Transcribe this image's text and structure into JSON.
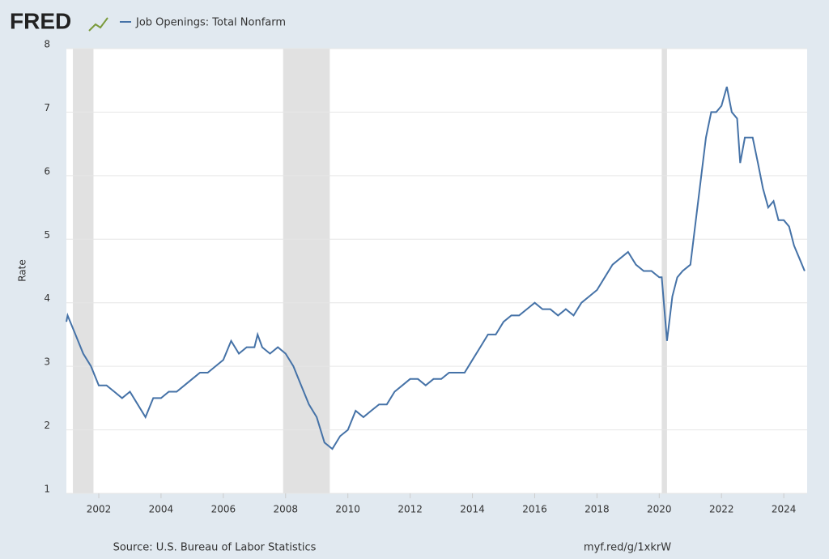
{
  "logo": "FRED",
  "chart_data": {
    "type": "line",
    "y_label": "Rate",
    "source": "Source: U.S. Bureau of Labor Statistics",
    "link": "myf.red/g/1xkrW",
    "xlim": [
      2000.96,
      2024.75
    ],
    "xticks": [
      2002,
      2004,
      2006,
      2008,
      2010,
      2012,
      2014,
      2016,
      2018,
      2020,
      2022,
      2024
    ],
    "ylim": [
      1,
      8
    ],
    "yticks": [
      1,
      2,
      3,
      4,
      5,
      6,
      7,
      8
    ],
    "grid": true,
    "recessions": [
      [
        2001.17,
        2001.83
      ],
      [
        2007.92,
        2009.42
      ],
      [
        2020.08,
        2020.25
      ]
    ],
    "x": [
      2000.96,
      2001.0,
      2001.25,
      2001.5,
      2001.75,
      2002.0,
      2002.25,
      2002.5,
      2002.75,
      2003.0,
      2003.25,
      2003.5,
      2003.75,
      2004.0,
      2004.25,
      2004.5,
      2004.75,
      2005.0,
      2005.25,
      2005.5,
      2005.75,
      2006.0,
      2006.25,
      2006.5,
      2006.75,
      2007.0,
      2007.1,
      2007.25,
      2007.5,
      2007.75,
      2008.0,
      2008.25,
      2008.5,
      2008.75,
      2009.0,
      2009.25,
      2009.5,
      2009.75,
      2010.0,
      2010.25,
      2010.5,
      2010.75,
      2011.0,
      2011.25,
      2011.5,
      2011.75,
      2012.0,
      2012.25,
      2012.5,
      2012.75,
      2013.0,
      2013.25,
      2013.5,
      2013.75,
      2014.0,
      2014.25,
      2014.5,
      2014.75,
      2015.0,
      2015.25,
      2015.5,
      2015.75,
      2016.0,
      2016.25,
      2016.5,
      2016.75,
      2017.0,
      2017.25,
      2017.5,
      2017.75,
      2018.0,
      2018.25,
      2018.5,
      2018.75,
      2019.0,
      2019.25,
      2019.5,
      2019.75,
      2020.0,
      2020.08,
      2020.25,
      2020.42,
      2020.58,
      2020.75,
      2021.0,
      2021.25,
      2021.5,
      2021.67,
      2021.83,
      2022.0,
      2022.17,
      2022.33,
      2022.5,
      2022.6,
      2022.75,
      2023.0,
      2023.17,
      2023.33,
      2023.5,
      2023.67,
      2023.83,
      2024.0,
      2024.17,
      2024.33,
      2024.5,
      2024.67
    ],
    "series": [
      {
        "name": "Job Openings: Total Nonfarm",
        "color": "#4572a7",
        "values": [
          3.7,
          3.8,
          3.5,
          3.2,
          3.0,
          2.7,
          2.7,
          2.6,
          2.5,
          2.6,
          2.4,
          2.2,
          2.5,
          2.5,
          2.6,
          2.6,
          2.7,
          2.8,
          2.9,
          2.9,
          3.0,
          3.1,
          3.4,
          3.2,
          3.3,
          3.3,
          3.5,
          3.3,
          3.2,
          3.3,
          3.2,
          3.0,
          2.7,
          2.4,
          2.2,
          1.8,
          1.7,
          1.9,
          2.0,
          2.3,
          2.2,
          2.3,
          2.4,
          2.4,
          2.6,
          2.7,
          2.8,
          2.8,
          2.7,
          2.8,
          2.8,
          2.9,
          2.9,
          2.9,
          3.1,
          3.3,
          3.5,
          3.5,
          3.7,
          3.8,
          3.8,
          3.9,
          4.0,
          3.9,
          3.9,
          3.8,
          3.9,
          3.8,
          4.0,
          4.1,
          4.2,
          4.4,
          4.6,
          4.7,
          4.8,
          4.6,
          4.5,
          4.5,
          4.4,
          4.4,
          3.4,
          4.1,
          4.4,
          4.5,
          4.6,
          5.6,
          6.6,
          7.0,
          7.0,
          7.1,
          7.4,
          7.0,
          6.9,
          6.2,
          6.6,
          6.6,
          6.2,
          5.8,
          5.5,
          5.6,
          5.3,
          5.3,
          5.2,
          4.9,
          4.7,
          4.5
        ]
      }
    ]
  }
}
